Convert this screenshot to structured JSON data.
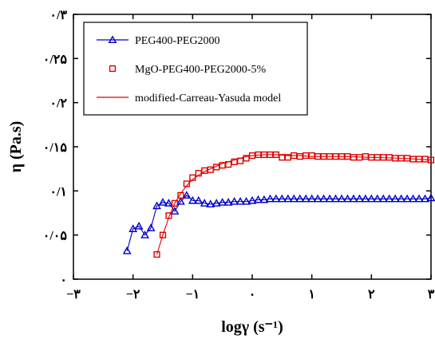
{
  "chart_data": {
    "type": "scatter",
    "title": "",
    "xlabel": "logγ (s⁻¹)",
    "ylabel": "η (Pa.s)",
    "xlim": [
      -3,
      3
    ],
    "ylim": [
      0,
      0.3
    ],
    "x_ticks": [
      -3,
      -2,
      -1,
      0,
      1,
      2,
      3
    ],
    "x_tick_labels": [
      "−۳",
      "−۲",
      "−۱",
      "۰",
      "۱",
      "۲",
      "۳"
    ],
    "y_ticks": [
      0,
      0.05,
      0.1,
      0.15,
      0.2,
      0.25,
      0.3
    ],
    "y_tick_labels": [
      "۰",
      "۰/۰۵",
      "۰/۱",
      "۰/۱۵",
      "۰/۲",
      "۰/۲۵",
      "۰/۳"
    ],
    "grid": false,
    "legend_position": "top-left",
    "series": [
      {
        "name": "PEG400-PEG2000",
        "color": "#0000cc",
        "marker": "triangle",
        "line": true,
        "x": [
          -2.1,
          -2.0,
          -1.9,
          -1.8,
          -1.7,
          -1.6,
          -1.5,
          -1.4,
          -1.3,
          -1.2,
          -1.1,
          -1.0,
          -0.9,
          -0.8,
          -0.7,
          -0.6,
          -0.5,
          -0.4,
          -0.3,
          -0.2,
          -0.1,
          0.0,
          0.1,
          0.2,
          0.3,
          0.4,
          0.5,
          0.6,
          0.7,
          0.8,
          0.9,
          1.0,
          1.1,
          1.2,
          1.3,
          1.4,
          1.5,
          1.6,
          1.7,
          1.8,
          1.9,
          2.0,
          2.1,
          2.2,
          2.3,
          2.4,
          2.5,
          2.6,
          2.7,
          2.8,
          2.9,
          3.0
        ],
        "values": [
          0.032,
          0.057,
          0.06,
          0.05,
          0.058,
          0.083,
          0.087,
          0.086,
          0.077,
          0.088,
          0.095,
          0.089,
          0.089,
          0.086,
          0.085,
          0.086,
          0.087,
          0.087,
          0.088,
          0.088,
          0.088,
          0.089,
          0.09,
          0.09,
          0.091,
          0.091,
          0.091,
          0.091,
          0.091,
          0.091,
          0.091,
          0.091,
          0.091,
          0.091,
          0.091,
          0.091,
          0.091,
          0.091,
          0.091,
          0.091,
          0.091,
          0.091,
          0.091,
          0.091,
          0.091,
          0.091,
          0.091,
          0.091,
          0.091,
          0.091,
          0.091,
          0.092
        ]
      },
      {
        "name": "MgO-PEG400-PEG2000-5%",
        "color": "#e00000",
        "marker": "square",
        "line": false,
        "x": [
          -1.6,
          -1.5,
          -1.4,
          -1.3,
          -1.2,
          -1.1,
          -1.0,
          -0.9,
          -0.8,
          -0.7,
          -0.6,
          -0.5,
          -0.4,
          -0.3,
          -0.2,
          -0.1,
          0.0,
          0.1,
          0.2,
          0.3,
          0.4,
          0.5,
          0.6,
          0.7,
          0.8,
          0.9,
          1.0,
          1.1,
          1.2,
          1.3,
          1.4,
          1.5,
          1.6,
          1.7,
          1.8,
          1.9,
          2.0,
          2.1,
          2.2,
          2.3,
          2.4,
          2.5,
          2.6,
          2.7,
          2.8,
          2.9,
          3.0
        ],
        "values": [
          0.028,
          0.05,
          0.072,
          0.086,
          0.095,
          0.108,
          0.115,
          0.12,
          0.123,
          0.124,
          0.127,
          0.129,
          0.13,
          0.133,
          0.134,
          0.137,
          0.14,
          0.141,
          0.141,
          0.141,
          0.141,
          0.138,
          0.138,
          0.14,
          0.139,
          0.14,
          0.14,
          0.139,
          0.139,
          0.139,
          0.139,
          0.139,
          0.139,
          0.138,
          0.138,
          0.139,
          0.138,
          0.138,
          0.138,
          0.138,
          0.137,
          0.137,
          0.137,
          0.136,
          0.136,
          0.136,
          0.135
        ]
      },
      {
        "name": "modified-Carreau-Yasuda model",
        "color": "#e00000",
        "marker": "none",
        "line": true,
        "x": [
          -1.6,
          -1.5,
          -1.4,
          -1.3,
          -1.2,
          -1.1,
          -1.0,
          -0.9,
          -0.8,
          -0.7,
          -0.6,
          -0.5,
          -0.4,
          -0.3,
          -0.2,
          -0.1,
          0.0,
          0.2,
          0.4,
          0.6,
          0.8,
          1.0,
          1.5,
          2.0,
          2.5,
          3.0
        ],
        "values": [
          0.028,
          0.05,
          0.07,
          0.086,
          0.097,
          0.106,
          0.113,
          0.118,
          0.122,
          0.125,
          0.128,
          0.131,
          0.133,
          0.135,
          0.137,
          0.139,
          0.14,
          0.141,
          0.141,
          0.14,
          0.14,
          0.139,
          0.139,
          0.138,
          0.137,
          0.135
        ]
      }
    ]
  }
}
